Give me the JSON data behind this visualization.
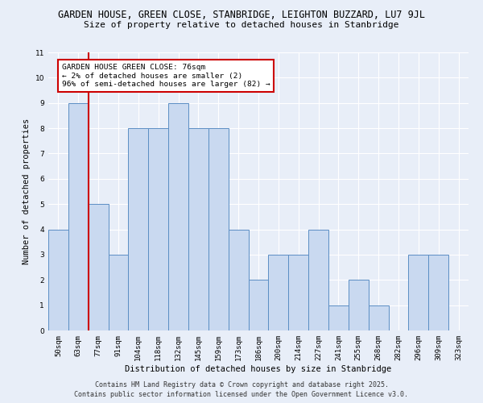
{
  "title_line1": "GARDEN HOUSE, GREEN CLOSE, STANBRIDGE, LEIGHTON BUZZARD, LU7 9JL",
  "title_line2": "Size of property relative to detached houses in Stanbridge",
  "xlabel": "Distribution of detached houses by size in Stanbridge",
  "ylabel": "Number of detached properties",
  "categories": [
    "50sqm",
    "63sqm",
    "77sqm",
    "91sqm",
    "104sqm",
    "118sqm",
    "132sqm",
    "145sqm",
    "159sqm",
    "173sqm",
    "186sqm",
    "200sqm",
    "214sqm",
    "227sqm",
    "241sqm",
    "255sqm",
    "268sqm",
    "282sqm",
    "296sqm",
    "309sqm",
    "323sqm"
  ],
  "values": [
    4,
    9,
    5,
    3,
    8,
    8,
    9,
    8,
    8,
    4,
    2,
    3,
    3,
    4,
    1,
    2,
    1,
    0,
    3,
    3,
    0
  ],
  "bar_color": "#c9d9f0",
  "bar_edge_color": "#5b8ec4",
  "bar_width": 1.0,
  "ylim": [
    0,
    11
  ],
  "yticks": [
    0,
    1,
    2,
    3,
    4,
    5,
    6,
    7,
    8,
    9,
    10,
    11
  ],
  "red_line_x": 1.5,
  "annotation_text": "GARDEN HOUSE GREEN CLOSE: 76sqm\n← 2% of detached houses are smaller (2)\n96% of semi-detached houses are larger (82) →",
  "annotation_box_color": "#ffffff",
  "annotation_box_edge": "#cc0000",
  "footer_line1": "Contains HM Land Registry data © Crown copyright and database right 2025.",
  "footer_line2": "Contains public sector information licensed under the Open Government Licence v3.0.",
  "bg_color": "#e8eef8",
  "plot_bg_color": "#e8eef8",
  "grid_color": "#ffffff",
  "title_fontsize": 8.5,
  "subtitle_fontsize": 8.0,
  "axis_label_fontsize": 7.5,
  "tick_fontsize": 6.5,
  "annotation_fontsize": 6.8,
  "footer_fontsize": 6.0
}
